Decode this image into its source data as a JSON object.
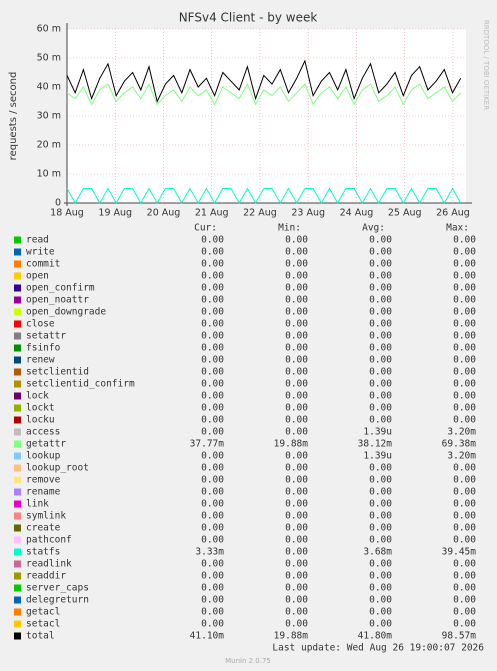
{
  "chart_data": {
    "type": "line",
    "title": "NFSv4 Client - by week",
    "ylabel": "requests / second",
    "watermark": "RRDTOOL / TOBI OETIKER",
    "ylim": [
      0,
      0.06
    ],
    "yticks": [
      0,
      {
        "value": 0.01,
        "label": "10 m"
      },
      {
        "value": 0.02,
        "label": "20 m"
      },
      {
        "value": 0.03,
        "label": "30 m"
      },
      {
        "value": 0.04,
        "label": "40 m"
      },
      {
        "value": 0.05,
        "label": "50 m"
      },
      {
        "value": 0.06,
        "label": "60 m"
      }
    ],
    "xlim": [
      0,
      8.27
    ],
    "xticks": [
      {
        "value": 0,
        "label": "18 Aug"
      },
      {
        "value": 1,
        "label": "19 Aug"
      },
      {
        "value": 2,
        "label": "20 Aug"
      },
      {
        "value": 3,
        "label": "21 Aug"
      },
      {
        "value": 4,
        "label": "22 Aug"
      },
      {
        "value": 5,
        "label": "23 Aug"
      },
      {
        "value": 6,
        "label": "24 Aug"
      },
      {
        "value": 7,
        "label": "25 Aug"
      },
      {
        "value": 8,
        "label": "26 Aug"
      }
    ],
    "grid": true,
    "x": [
      0,
      0.17,
      0.34,
      0.51,
      0.68,
      0.85,
      1.02,
      1.19,
      1.36,
      1.53,
      1.7,
      1.87,
      2.04,
      2.21,
      2.38,
      2.55,
      2.72,
      2.89,
      3.06,
      3.23,
      3.4,
      3.57,
      3.74,
      3.91,
      4.08,
      4.25,
      4.42,
      4.59,
      4.76,
      4.93,
      5.1,
      5.27,
      5.44,
      5.61,
      5.78,
      5.95,
      6.12,
      6.29,
      6.46,
      6.63,
      6.8,
      6.97,
      7.14,
      7.31,
      7.48,
      7.65,
      7.82,
      7.99,
      8.16
    ],
    "series": [
      {
        "name": "getattr",
        "color": "#80ff80",
        "values": [
          0.038,
          0.036,
          0.04,
          0.034,
          0.039,
          0.041,
          0.035,
          0.038,
          0.04,
          0.036,
          0.041,
          0.034,
          0.037,
          0.039,
          0.035,
          0.04,
          0.037,
          0.039,
          0.034,
          0.04,
          0.038,
          0.036,
          0.041,
          0.034,
          0.039,
          0.037,
          0.04,
          0.035,
          0.038,
          0.041,
          0.034,
          0.038,
          0.04,
          0.036,
          0.04,
          0.034,
          0.039,
          0.041,
          0.035,
          0.037,
          0.04,
          0.034,
          0.039,
          0.041,
          0.036,
          0.038,
          0.04,
          0.035,
          0.038
        ]
      },
      {
        "name": "statfs",
        "color": "#00ffcc",
        "values": [
          0.005,
          0,
          0.005,
          0.005,
          0,
          0.005,
          0,
          0.005,
          0.005,
          0,
          0.005,
          0,
          0.005,
          0.005,
          0,
          0.005,
          0,
          0.005,
          0,
          0.005,
          0.005,
          0,
          0.005,
          0,
          0.005,
          0.005,
          0,
          0.005,
          0,
          0.005,
          0.005,
          0,
          0.005,
          0,
          0.005,
          0.005,
          0,
          0.005,
          0,
          0.005,
          0.005,
          0,
          0.005,
          0,
          0.005,
          0.005,
          0,
          0.005,
          0
        ]
      },
      {
        "name": "total",
        "color": "#000000",
        "values": [
          0.044,
          0.038,
          0.046,
          0.036,
          0.043,
          0.048,
          0.037,
          0.042,
          0.045,
          0.039,
          0.047,
          0.035,
          0.041,
          0.044,
          0.038,
          0.046,
          0.04,
          0.043,
          0.037,
          0.045,
          0.042,
          0.039,
          0.047,
          0.036,
          0.044,
          0.041,
          0.046,
          0.038,
          0.043,
          0.049,
          0.037,
          0.042,
          0.045,
          0.039,
          0.046,
          0.036,
          0.043,
          0.048,
          0.038,
          0.041,
          0.045,
          0.037,
          0.044,
          0.047,
          0.039,
          0.042,
          0.046,
          0.038,
          0.043
        ]
      }
    ]
  },
  "legend": {
    "headers": [
      "Cur:",
      "Min:",
      "Avg:",
      "Max:"
    ],
    "rows": [
      [
        "read",
        "#00cc00",
        "0.00",
        "0.00",
        "0.00",
        "0.00"
      ],
      [
        "write",
        "#0066b3",
        "0.00",
        "0.00",
        "0.00",
        "0.00"
      ],
      [
        "commit",
        "#ff8000",
        "0.00",
        "0.00",
        "0.00",
        "0.00"
      ],
      [
        "open",
        "#ffcc00",
        "0.00",
        "0.00",
        "0.00",
        "0.00"
      ],
      [
        "open_confirm",
        "#330099",
        "0.00",
        "0.00",
        "0.00",
        "0.00"
      ],
      [
        "open_noattr",
        "#990099",
        "0.00",
        "0.00",
        "0.00",
        "0.00"
      ],
      [
        "open_downgrade",
        "#ccff00",
        "0.00",
        "0.00",
        "0.00",
        "0.00"
      ],
      [
        "close",
        "#ff0000",
        "0.00",
        "0.00",
        "0.00",
        "0.00"
      ],
      [
        "setattr",
        "#808080",
        "0.00",
        "0.00",
        "0.00",
        "0.00"
      ],
      [
        "fsinfo",
        "#008f00",
        "0.00",
        "0.00",
        "0.00",
        "0.00"
      ],
      [
        "renew",
        "#00487d",
        "0.00",
        "0.00",
        "0.00",
        "0.00"
      ],
      [
        "setclientid",
        "#b35a00",
        "0.00",
        "0.00",
        "0.00",
        "0.00"
      ],
      [
        "setclientid_confirm",
        "#b38f00",
        "0.00",
        "0.00",
        "0.00",
        "0.00"
      ],
      [
        "lock",
        "#6b006b",
        "0.00",
        "0.00",
        "0.00",
        "0.00"
      ],
      [
        "lockt",
        "#8fb300",
        "0.00",
        "0.00",
        "0.00",
        "0.00"
      ],
      [
        "locku",
        "#b30000",
        "0.00",
        "0.00",
        "0.00",
        "0.00"
      ],
      [
        "access",
        "#bebebe",
        "0.00",
        "0.00",
        "1.39u",
        "3.20m"
      ],
      [
        "getattr",
        "#80ff80",
        "37.77m",
        "19.88m",
        "38.12m",
        "69.38m"
      ],
      [
        "lookup",
        "#80c9ff",
        "0.00",
        "0.00",
        "1.39u",
        "3.20m"
      ],
      [
        "lookup_root",
        "#ffc080",
        "0.00",
        "0.00",
        "0.00",
        "0.00"
      ],
      [
        "remove",
        "#ffe680",
        "0.00",
        "0.00",
        "0.00",
        "0.00"
      ],
      [
        "rename",
        "#aa80ff",
        "0.00",
        "0.00",
        "0.00",
        "0.00"
      ],
      [
        "link",
        "#ee00cc",
        "0.00",
        "0.00",
        "0.00",
        "0.00"
      ],
      [
        "symlink",
        "#ff8080",
        "0.00",
        "0.00",
        "0.00",
        "0.00"
      ],
      [
        "create",
        "#666600",
        "0.00",
        "0.00",
        "0.00",
        "0.00"
      ],
      [
        "pathconf",
        "#ffbfff",
        "0.00",
        "0.00",
        "0.00",
        "0.00"
      ],
      [
        "statfs",
        "#00ffcc",
        "3.33m",
        "0.00",
        "3.68m",
        "39.45m"
      ],
      [
        "readlink",
        "#cc6699",
        "0.00",
        "0.00",
        "0.00",
        "0.00"
      ],
      [
        "readdir",
        "#999900",
        "0.00",
        "0.00",
        "0.00",
        "0.00"
      ],
      [
        "server_caps",
        "#00cc00",
        "0.00",
        "0.00",
        "0.00",
        "0.00"
      ],
      [
        "delegreturn",
        "#0066b3",
        "0.00",
        "0.00",
        "0.00",
        "0.00"
      ],
      [
        "getacl",
        "#ff8000",
        "0.00",
        "0.00",
        "0.00",
        "0.00"
      ],
      [
        "setacl",
        "#ffcc00",
        "0.00",
        "0.00",
        "0.00",
        "0.00"
      ],
      [
        "total",
        "#000000",
        "41.10m",
        "19.88m",
        "41.80m",
        "98.57m"
      ]
    ]
  },
  "footer": {
    "last_update": "Last update: Wed Aug 26 19:00:07 2026",
    "version": "Munin 2.0.75"
  }
}
